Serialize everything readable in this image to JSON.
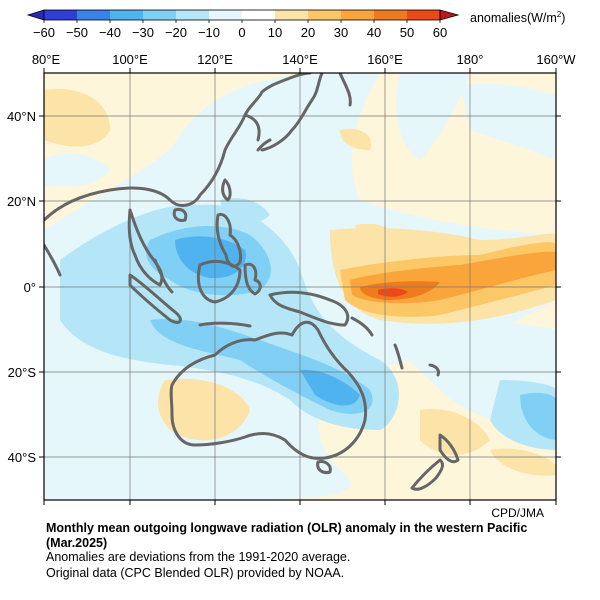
{
  "colorbar": {
    "ticks": [
      "−60",
      "−50",
      "−40",
      "−30",
      "−20",
      "−10",
      "0",
      "10",
      "20",
      "30",
      "40",
      "50",
      "60"
    ],
    "colors": [
      "#2f3fd6",
      "#3b82e8",
      "#4fb3ef",
      "#7fd0f4",
      "#b5e6f7",
      "#e6f7fb",
      "#fdf6da",
      "#fce3a8",
      "#fcc766",
      "#f9a53c",
      "#f07b1e",
      "#e94a18"
    ],
    "units_text": "anomalies(W/m",
    "units_sup": "2",
    "units_close": ")"
  },
  "axes": {
    "lon_labels": [
      "80°E",
      "100°E",
      "120°E",
      "140°E",
      "160°E",
      "180°",
      "160°W"
    ],
    "lat_labels": [
      "40°N",
      "20°N",
      "0°",
      "20°S",
      "40°S"
    ]
  },
  "credit": "CPD/JMA",
  "caption": {
    "title": "Monthly mean outgoing longwave radiation (OLR) anomaly in the western Pacific (Mar.2025)",
    "line1": "Anomalies are deviations from the 1991-2020 average.",
    "line2": "Original data (CPC Blended OLR) provided by NOAA."
  },
  "colors": {
    "coast": "#666666",
    "grid": "#777777",
    "frame": "#000000"
  }
}
